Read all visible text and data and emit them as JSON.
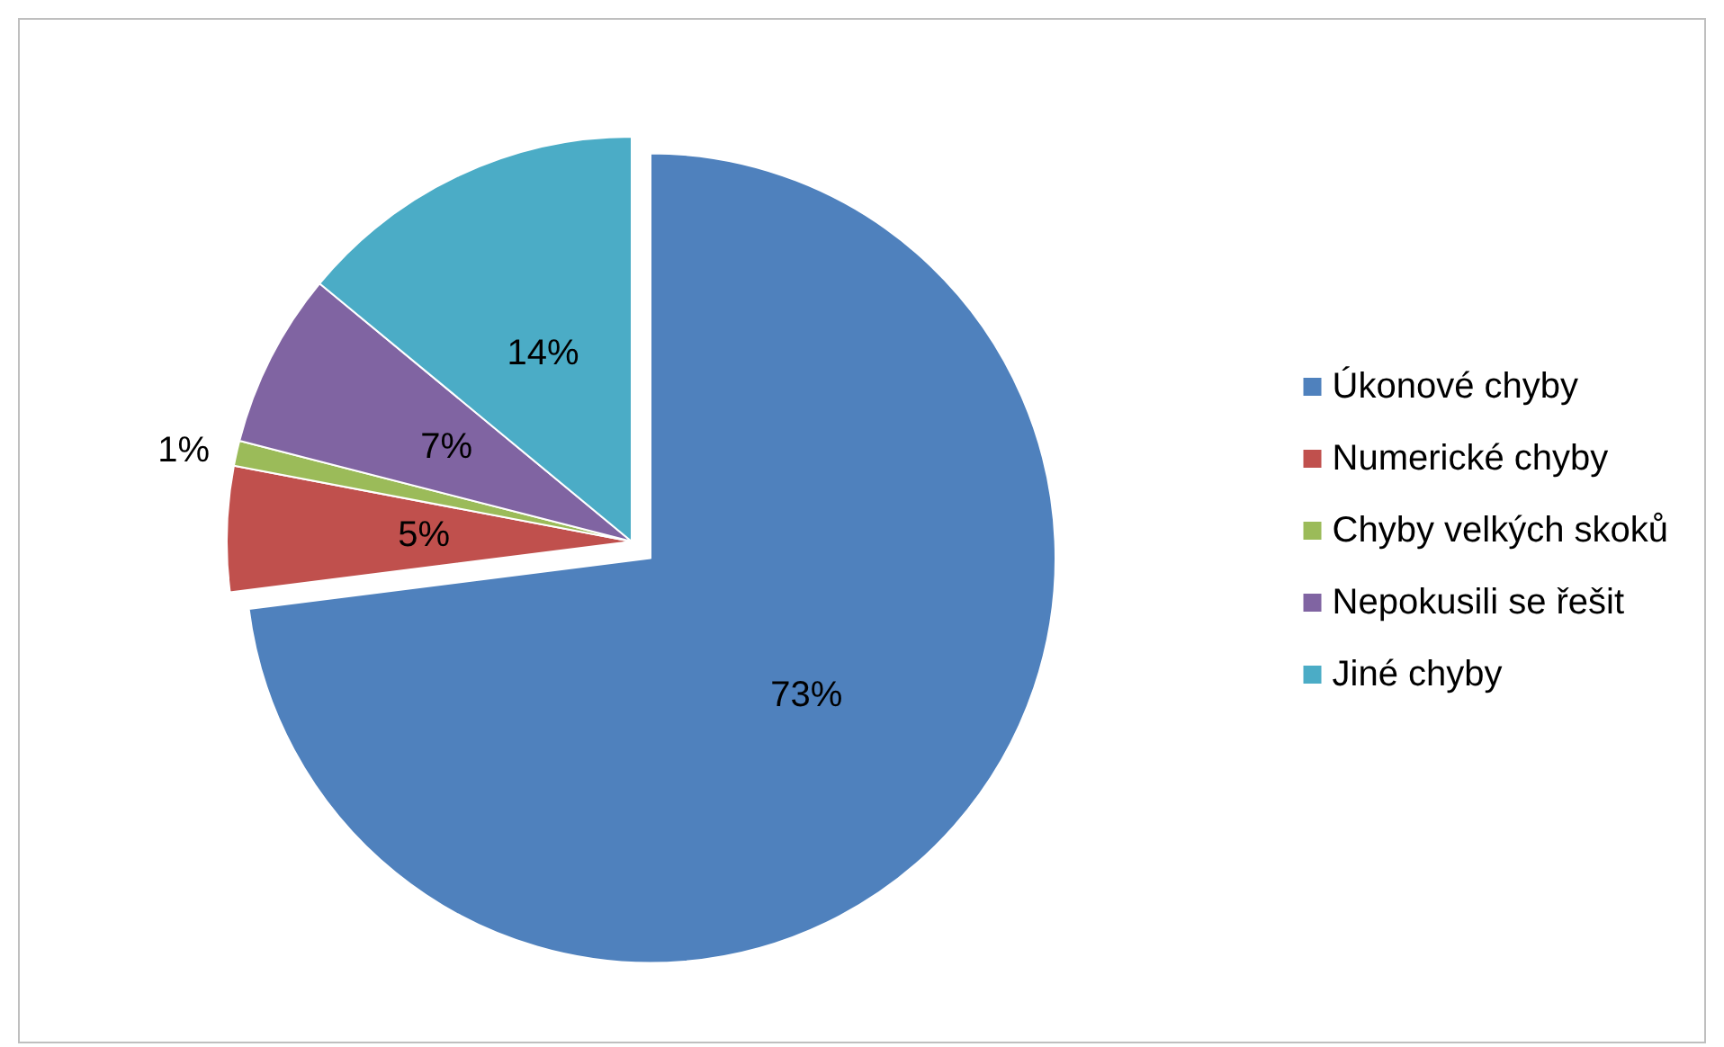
{
  "chart_data": {
    "type": "pie",
    "categories": [
      "Úkonové chyby",
      "Numerické chyby",
      "Chyby velkých skoků",
      "Nepokusili se řešit",
      "Jiné chyby"
    ],
    "values": [
      73,
      5,
      1,
      7,
      14
    ],
    "colors": [
      "#4f81bd",
      "#c0504d",
      "#9bbb59",
      "#8064a2",
      "#4bacc6"
    ],
    "value_labels": [
      "73%",
      "5%",
      "1%",
      "7%",
      "14%"
    ],
    "legend": "right"
  }
}
